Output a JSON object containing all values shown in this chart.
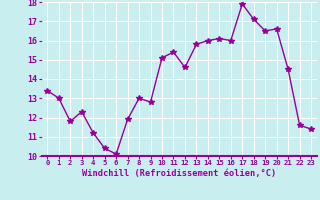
{
  "x": [
    0,
    1,
    2,
    3,
    4,
    5,
    6,
    7,
    8,
    9,
    10,
    11,
    12,
    13,
    14,
    15,
    16,
    17,
    18,
    19,
    20,
    21,
    22,
    23
  ],
  "y": [
    13.4,
    13.0,
    11.8,
    12.3,
    11.2,
    10.4,
    10.1,
    11.9,
    13.0,
    12.8,
    15.1,
    15.4,
    14.6,
    15.8,
    16.0,
    16.1,
    16.0,
    17.9,
    17.1,
    16.5,
    16.6,
    14.5,
    11.6,
    11.4
  ],
  "line_color": "#990099",
  "marker": "*",
  "marker_color": "#990099",
  "bg_color": "#c8eef0",
  "grid_color": "#ffffff",
  "xlabel": "Windchill (Refroidissement éolien,°C)",
  "xlabel_color": "#990099",
  "tick_color": "#990099",
  "ylim": [
    10,
    18
  ],
  "xlim": [
    -0.5,
    23.5
  ],
  "yticks": [
    10,
    11,
    12,
    13,
    14,
    15,
    16,
    17,
    18
  ],
  "xticks": [
    0,
    1,
    2,
    3,
    4,
    5,
    6,
    7,
    8,
    9,
    10,
    11,
    12,
    13,
    14,
    15,
    16,
    17,
    18,
    19,
    20,
    21,
    22,
    23
  ],
  "xtick_labels": [
    "0",
    "1",
    "2",
    "3",
    "4",
    "5",
    "6",
    "7",
    "8",
    "9",
    "10",
    "11",
    "12",
    "13",
    "14",
    "15",
    "16",
    "17",
    "18",
    "19",
    "20",
    "21",
    "22",
    "23"
  ],
  "line_width": 1.0,
  "marker_size": 4
}
